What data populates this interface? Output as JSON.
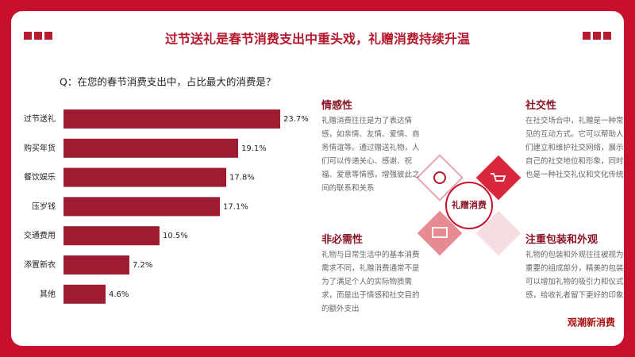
{
  "chart_data": {
    "type": "bar",
    "title": "过节送礼是春节消费支出中重头戏，礼赠消费持续升温",
    "subtitle": "Q：在您的春节消费支出中，占比最大的消费是？",
    "categories": [
      "过节送礼",
      "购买年货",
      "餐饮娱乐",
      "压岁钱",
      "交通费用",
      "添置新衣",
      "其他"
    ],
    "values": [
      23.7,
      19.1,
      17.8,
      17.1,
      10.5,
      7.2,
      4.6
    ],
    "value_labels": [
      "23.7%",
      "19.1%",
      "17.8%",
      "17.1%",
      "10.5%",
      "7.2%",
      "4.6%"
    ],
    "color": "#9e1c31"
  },
  "center_label": "礼赠消费",
  "panels": [
    {
      "title": "情感性",
      "text": "礼赠消费往往是为了表达情感，如亲情、友情、爱情、商务情谊等。通过赠送礼物，人们可以传递关心、感谢、祝福、爱意等情感，增强彼此之间的联系和关系"
    },
    {
      "title": "社交性",
      "text": "在社交场合中，礼赠是一种常见的互动方式。它可以帮助人们建立和维护社交网络，展示自己的社交地位和形象，同时也是一种社交礼仪和文化传统"
    },
    {
      "title": "非必需性",
      "text": "礼物与日常生活中的基本消费需求不同，礼赠消费通常不是为了满足个人的实际物质需求，而是出于情感和社交目的的额外支出"
    },
    {
      "title": "注重包装和外观",
      "text": "礼物的包装和外观往往被视为重要的组成部分，精美的包装可以增加礼物的吸引力和仪式感，给收礼者留下更好的印象"
    }
  ],
  "brand": "观潮新消费"
}
